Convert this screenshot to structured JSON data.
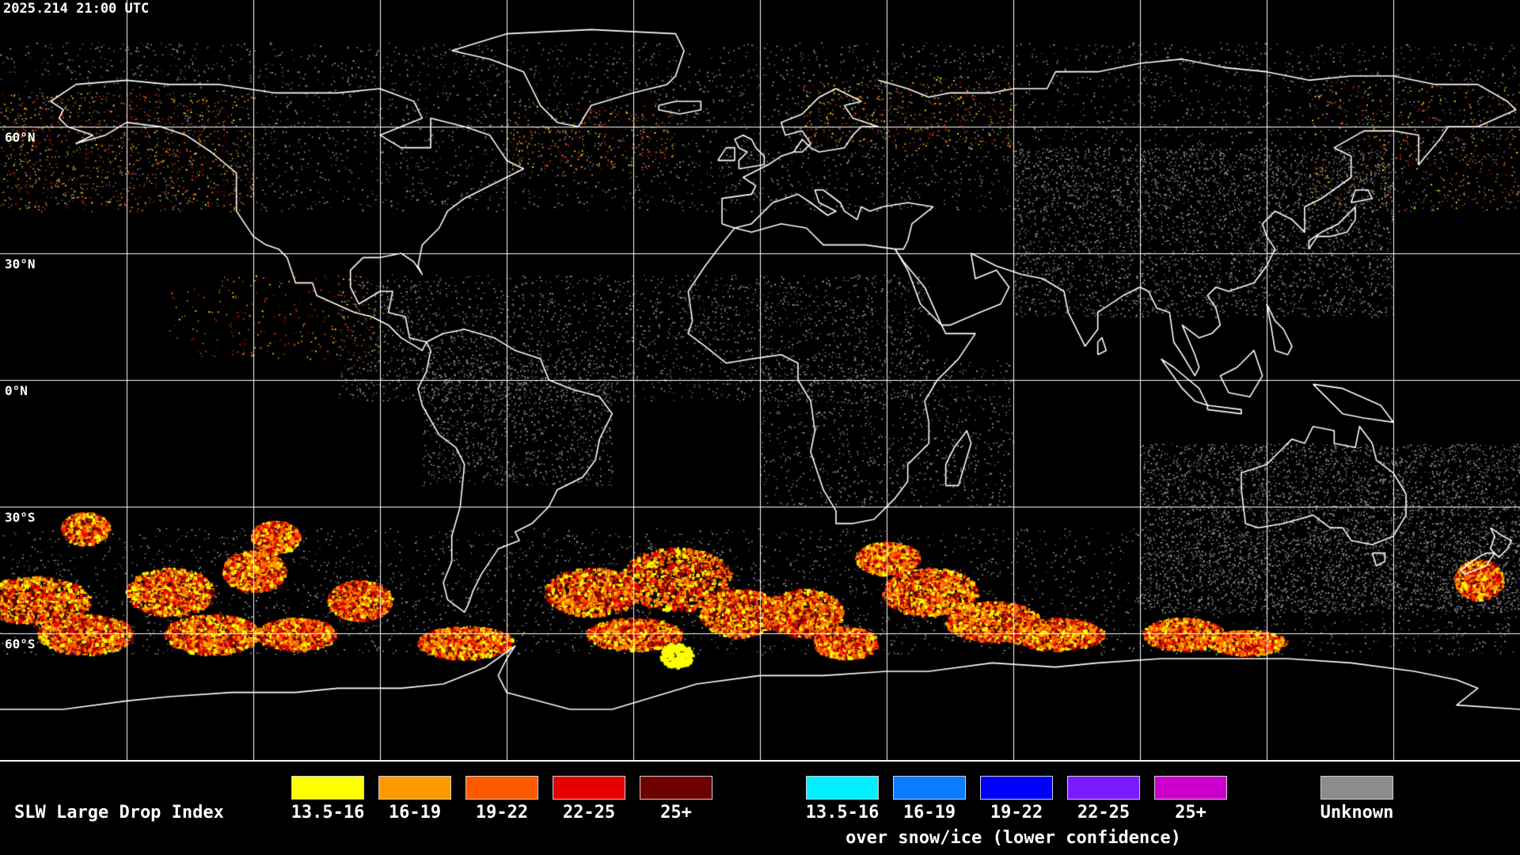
{
  "header": {
    "timestamp": "2025.214 21:00 UTC"
  },
  "latitude_labels": [
    "60°N",
    "30°N",
    "0°N",
    "30°S",
    "60°S"
  ],
  "legend": {
    "title": "SLW Large Drop Index",
    "primary_bins": [
      {
        "label": "13.5-16",
        "color": "#ffff00"
      },
      {
        "label": "16-19",
        "color": "#ff9900"
      },
      {
        "label": "19-22",
        "color": "#ff5a00"
      },
      {
        "label": "22-25",
        "color": "#e60000"
      },
      {
        "label": "25+",
        "color": "#6e0000"
      }
    ],
    "snow_bins": [
      {
        "label": "13.5-16",
        "color": "#00f0ff"
      },
      {
        "label": "16-19",
        "color": "#0a7cff"
      },
      {
        "label": "19-22",
        "color": "#0000ff"
      },
      {
        "label": "22-25",
        "color": "#7a1aff"
      },
      {
        "label": "25+",
        "color": "#cc00cc"
      }
    ],
    "snow_note": "over snow/ice (lower confidence)",
    "unknown": {
      "label": "Unknown",
      "color": "#8c8c8c"
    }
  }
}
